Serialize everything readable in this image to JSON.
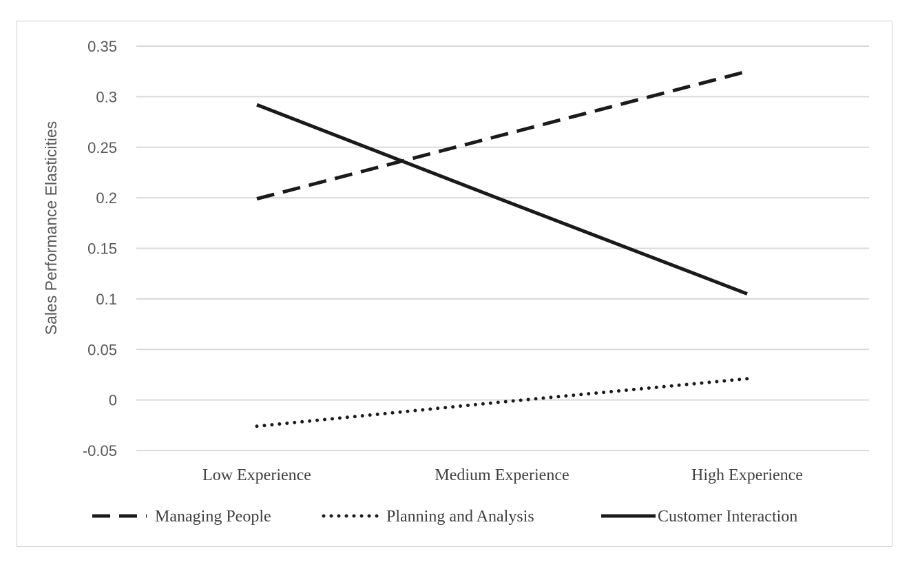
{
  "chart_data": {
    "type": "line",
    "title": "",
    "xlabel": "",
    "ylabel": "Sales Performance Elasticities",
    "categories": [
      "Low Experience",
      "Medium Experience",
      "High Experience"
    ],
    "ylim": [
      -0.05,
      0.35
    ],
    "yticks": [
      -0.05,
      0,
      0.05,
      0.1,
      0.15,
      0.2,
      0.25,
      0.3,
      0.35
    ],
    "ytick_labels": [
      "-0.05",
      "0",
      "0.05",
      "0.1",
      "0.15",
      "0.2",
      "0.25",
      "0.3",
      "0.35"
    ],
    "grid": true,
    "legend_position": "bottom",
    "series": [
      {
        "name": "Managing People",
        "style": "dashed",
        "color": "#1a1a1a",
        "values": [
          0.199,
          0.262,
          0.325
        ]
      },
      {
        "name": "Planning and Analysis",
        "style": "dotted",
        "color": "#1a1a1a",
        "values": [
          -0.026,
          -0.002,
          0.021
        ]
      },
      {
        "name": "Customer Interaction",
        "style": "solid",
        "color": "#1a1a1a",
        "values": [
          0.292,
          0.198,
          0.105
        ]
      }
    ]
  }
}
